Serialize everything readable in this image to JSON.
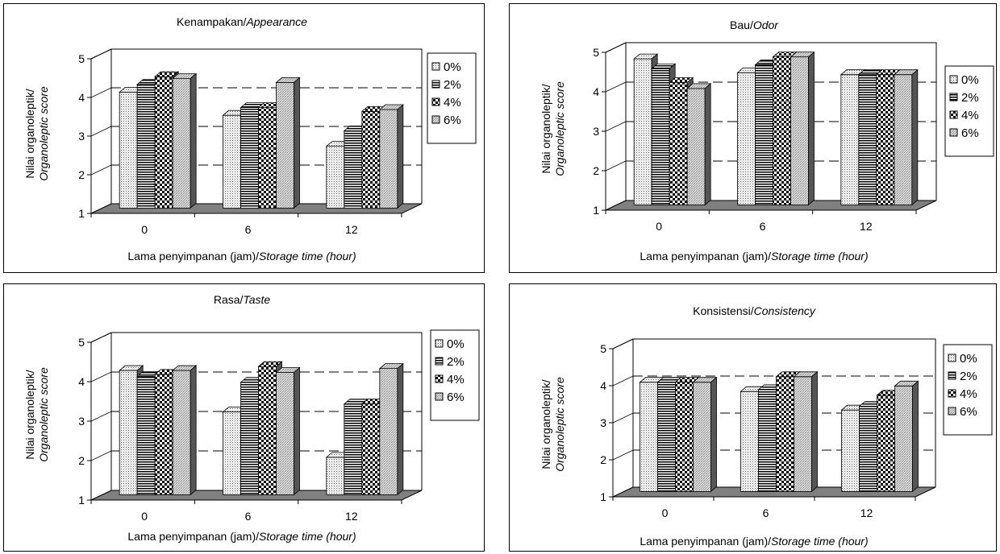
{
  "patterns": {
    "0%": "dots",
    "2%": "hlines",
    "4%": "checker",
    "6%": "diag"
  },
  "chart_data": [
    {
      "type": "bar",
      "title": "Kenampakan/",
      "title_italic": "Appearance",
      "xlabel": "Lama penyimpanan (jam)/",
      "xlabel_italic": "Storage time (hour)",
      "ylabel": "Nilai organoleptik/",
      "ylabel_italic": "Organoleptic score",
      "categories": [
        "0",
        "6",
        "12"
      ],
      "ylim": [
        1,
        5
      ],
      "yticks": [
        "1",
        "2",
        "3",
        "4",
        "5"
      ],
      "grid": "dashed",
      "legend_position": "right",
      "series": [
        {
          "name": "0%",
          "values": [
            4.0,
            3.4,
            2.6
          ]
        },
        {
          "name": "2%",
          "values": [
            4.2,
            3.6,
            3.0
          ]
        },
        {
          "name": "4%",
          "values": [
            4.4,
            3.6,
            3.5
          ]
        },
        {
          "name": "6%",
          "values": [
            4.35,
            4.25,
            3.55
          ]
        }
      ]
    },
    {
      "type": "bar",
      "title": "Bau/",
      "title_italic": "Odor",
      "xlabel": "Lama penyimpanan (jam)/",
      "xlabel_italic": "Storage time (hour)",
      "ylabel": "Nilai organoleptik/",
      "ylabel_italic": "Organoleptic score",
      "categories": [
        "0",
        "6",
        "12"
      ],
      "ylim": [
        1,
        5
      ],
      "yticks": [
        "1",
        "2",
        "3",
        "4",
        "5"
      ],
      "grid": "dashed",
      "legend_position": "right",
      "series": [
        {
          "name": "0%",
          "values": [
            4.7,
            4.35,
            4.3
          ]
        },
        {
          "name": "2%",
          "values": [
            4.45,
            4.55,
            4.3
          ]
        },
        {
          "name": "4%",
          "values": [
            4.1,
            4.75,
            4.3
          ]
        },
        {
          "name": "6%",
          "values": [
            3.95,
            4.75,
            4.3
          ]
        }
      ]
    },
    {
      "type": "bar",
      "title": "Rasa/",
      "title_italic": "Taste",
      "xlabel": "Lama penyimpanan (jam)/",
      "xlabel_italic": "Storage time (hour)",
      "ylabel": "Nilai organoleptik/",
      "ylabel_italic": "Organoleptic score",
      "categories": [
        "0",
        "6",
        "12"
      ],
      "ylim": [
        1,
        5
      ],
      "yticks": [
        "1",
        "2",
        "3",
        "4",
        "5"
      ],
      "grid": "dashed",
      "legend_position": "right",
      "series": [
        {
          "name": "0%",
          "values": [
            4.15,
            3.1,
            1.95
          ]
        },
        {
          "name": "2%",
          "values": [
            4.0,
            3.85,
            3.3
          ]
        },
        {
          "name": "4%",
          "values": [
            4.05,
            4.25,
            3.3
          ]
        },
        {
          "name": "6%",
          "values": [
            4.15,
            4.1,
            4.2
          ]
        }
      ]
    },
    {
      "type": "bar",
      "title": "Konsistensi/",
      "title_italic": "Consistency",
      "xlabel": "Lama penyimpanan (jam)/",
      "xlabel_italic": "Storage time (hour)",
      "ylabel": "Nilai organoleptik/",
      "ylabel_italic": "Organoleptic score",
      "categories": [
        "0",
        "6",
        "12"
      ],
      "ylim": [
        1,
        5
      ],
      "yticks": [
        "1",
        "2",
        "3",
        "4",
        "5"
      ],
      "grid": "dashed",
      "legend_position": "right",
      "series": [
        {
          "name": "0%",
          "values": [
            3.95,
            3.7,
            3.2
          ]
        },
        {
          "name": "2%",
          "values": [
            3.95,
            3.75,
            3.3
          ]
        },
        {
          "name": "4%",
          "values": [
            3.95,
            4.1,
            3.6
          ]
        },
        {
          "name": "6%",
          "values": [
            3.95,
            4.1,
            3.85
          ]
        }
      ]
    }
  ]
}
